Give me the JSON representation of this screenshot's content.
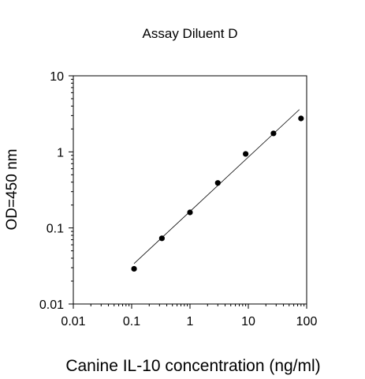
{
  "chart_data": {
    "type": "scatter",
    "title": "Assay Diluent D",
    "xlabel": "Canine IL-10 concentration (ng/ml)",
    "ylabel": "OD=450 nm",
    "x_scale": "log",
    "y_scale": "log",
    "xlim": [
      0.01,
      100
    ],
    "ylim": [
      0.01,
      10
    ],
    "x_ticks": [
      0.01,
      0.1,
      1,
      10,
      100
    ],
    "x_tick_labels": [
      "0.01",
      "0.1",
      "1",
      "10",
      "100"
    ],
    "y_ticks": [
      0.01,
      0.1,
      1,
      10
    ],
    "y_tick_labels": [
      "0.01",
      "0.1",
      "1",
      "10"
    ],
    "grid": false,
    "legend": "none",
    "series": [
      {
        "x": [
          0.11,
          0.33,
          1,
          3,
          9,
          27,
          80
        ],
        "y": [
          0.029,
          0.073,
          0.16,
          0.39,
          0.94,
          1.75,
          2.75
        ]
      }
    ],
    "fit_line": {
      "x": [
        0.11,
        75
      ],
      "y": [
        0.034,
        3.6
      ]
    },
    "colors": {
      "marker": "#000000",
      "axis": "#000000",
      "fit": "#000000"
    }
  }
}
